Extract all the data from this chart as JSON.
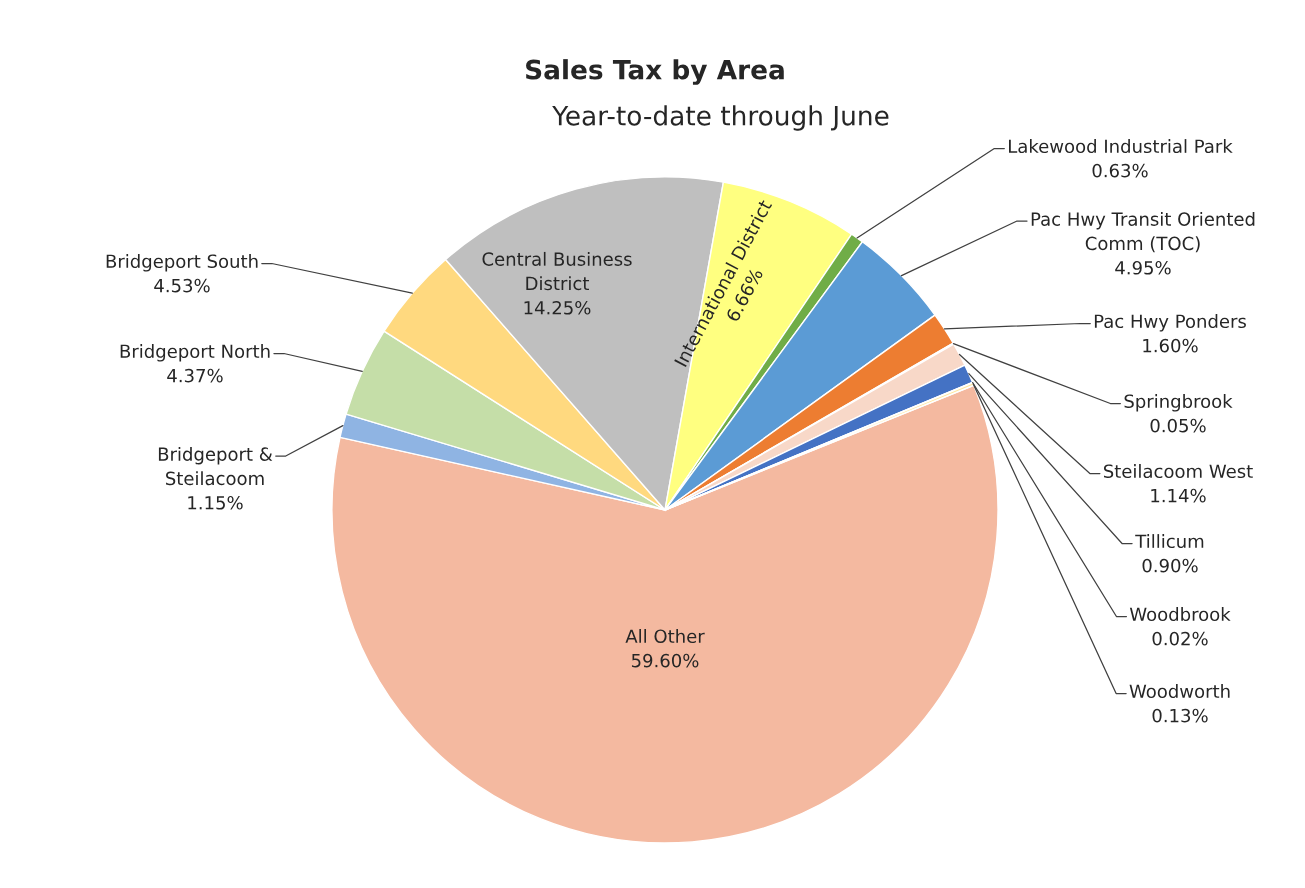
{
  "chart_data": {
    "type": "pie",
    "title": "Sales Tax by Area",
    "subtitle": "Year-to-date through June",
    "categories": [
      "All Other",
      "Bridgeport & Steilacoom",
      "Bridgeport North",
      "Bridgeport South",
      "Central Business District",
      "International District",
      "Lakewood Industrial Park",
      "Pac Hwy Transit Oriented Comm (TOC)",
      "Pac Hwy Ponders",
      "Springbrook",
      "Steilacoom West",
      "Tillicum",
      "Woodbrook",
      "Woodworth"
    ],
    "values": [
      59.6,
      1.15,
      4.37,
      4.53,
      14.25,
      6.66,
      0.63,
      4.95,
      1.6,
      0.05,
      1.14,
      0.9,
      0.02,
      0.13
    ],
    "colors": [
      "#f4b9a0",
      "#8fb4e3",
      "#c5dea8",
      "#ffd97f",
      "#bfbfbf",
      "#ffff80",
      "#70ad47",
      "#5b9bd5",
      "#ed7d31",
      "#a9c4e8",
      "#f8d8c8",
      "#4472c4",
      "#9dc3e6",
      "#ffe699"
    ],
    "value_labels": [
      "59.60%",
      "1.15%",
      "4.37%",
      "4.53%",
      "14.25%",
      "6.66%",
      "0.63%",
      "4.95%",
      "1.60%",
      "0.05%",
      "1.14%",
      "0.90%",
      "0.02%",
      "0.13%"
    ]
  }
}
